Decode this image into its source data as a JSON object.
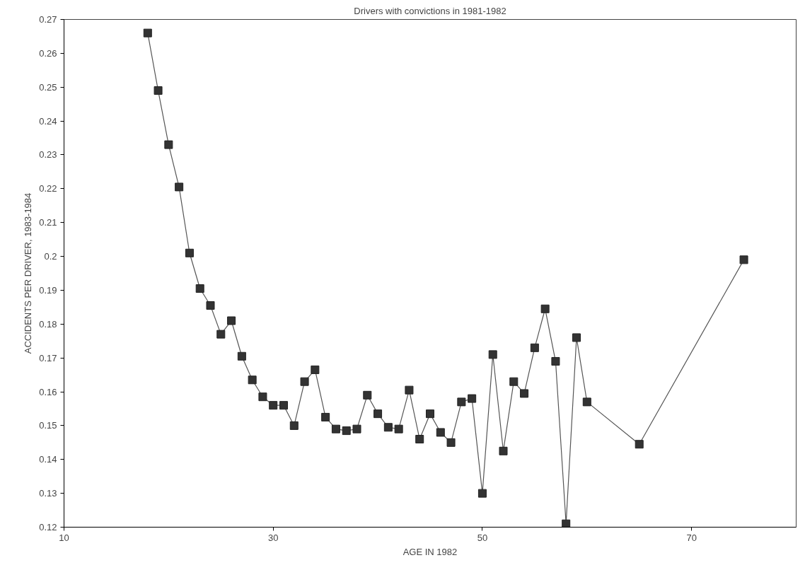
{
  "chart_data": {
    "type": "line",
    "title": "Drivers with convictions in 1981-1982",
    "xlabel": "AGE IN 1982",
    "ylabel": "ACCIDENTS PER DRIVER, 1983-1984",
    "x": [
      18,
      19,
      20,
      21,
      22,
      23,
      24,
      25,
      26,
      27,
      28,
      29,
      30,
      31,
      32,
      33,
      34,
      35,
      36,
      37,
      38,
      39,
      40,
      41,
      42,
      43,
      44,
      45,
      46,
      47,
      48,
      49,
      50,
      51,
      52,
      53,
      54,
      55,
      56,
      57,
      58,
      59,
      60,
      65,
      75
    ],
    "series": [
      {
        "color": "#333333",
        "values": [
          0.266,
          0.249,
          0.233,
          0.2205,
          0.201,
          0.1905,
          0.1855,
          0.177,
          0.181,
          0.1705,
          0.1635,
          0.1585,
          0.156,
          0.156,
          0.15,
          0.163,
          0.1665,
          0.1525,
          0.149,
          0.1485,
          0.149,
          0.159,
          0.1535,
          0.1495,
          0.149,
          0.1605,
          0.146,
          0.1535,
          0.148,
          0.145,
          0.157,
          0.158,
          0.13,
          0.171,
          0.1425,
          0.163,
          0.1595,
          0.173,
          0.1845,
          0.169,
          0.121,
          0.176,
          0.157,
          0.1445,
          0.199
        ]
      }
    ],
    "xlim": [
      10,
      80
    ],
    "xticks": [
      10,
      30,
      50,
      70
    ],
    "ylim": [
      0.12,
      0.27
    ],
    "yticks": [
      0.12,
      0.13,
      0.14,
      0.15,
      0.16,
      0.17,
      0.18,
      0.19,
      0.2,
      0.21,
      0.22,
      0.23,
      0.24,
      0.25,
      0.26,
      0.27
    ],
    "grid": false,
    "marker": "square",
    "line_style": "solid"
  }
}
